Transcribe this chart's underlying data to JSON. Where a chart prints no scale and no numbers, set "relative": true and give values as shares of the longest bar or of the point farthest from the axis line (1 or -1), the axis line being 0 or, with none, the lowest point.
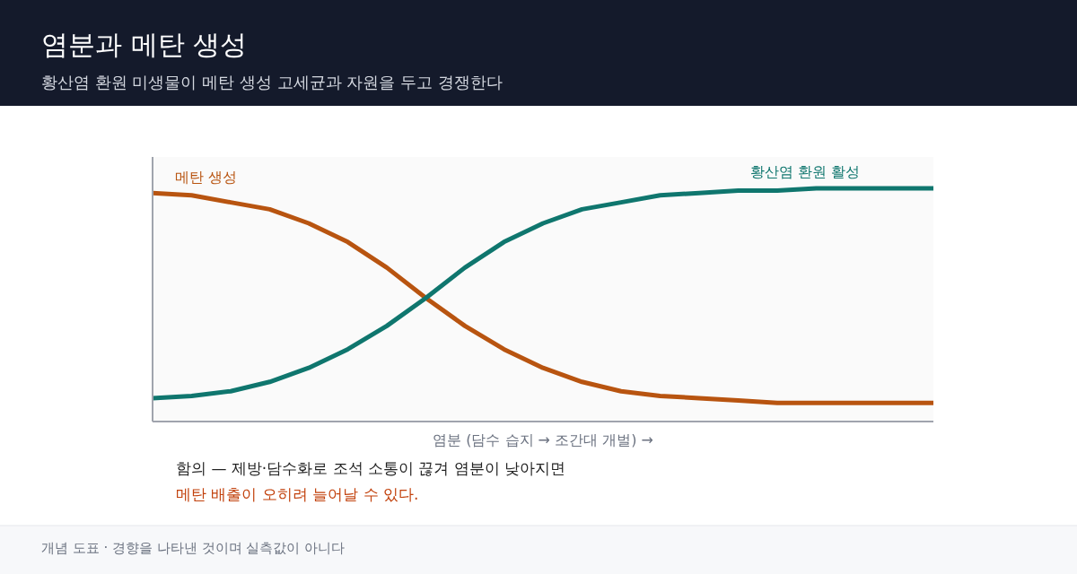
{
  "chart_data": {
    "type": "line",
    "title": "염분과 메탄 생성",
    "subtitle": "황산염 환원 미생물이 메탄 생성 고세균과 자원을 두고 경쟁한다",
    "xlabel": "염분 (담수 습지 → 조간대 개벌) →",
    "relative": true,
    "categories": [
      null,
      null,
      null,
      null,
      null,
      null,
      null,
      null,
      null,
      null,
      null,
      null,
      null,
      null,
      null,
      null,
      null,
      null,
      null,
      null,
      null
    ],
    "series": [
      {
        "name": "메탄 생성",
        "color": "#b85410",
        "values": [
          0.98,
          0.97,
          0.94,
          0.91,
          0.85,
          0.77,
          0.66,
          0.53,
          0.41,
          0.31,
          0.23,
          0.17,
          0.13,
          0.11,
          0.1,
          0.09,
          0.08,
          0.08,
          0.08,
          0.08,
          0.08
        ]
      },
      {
        "name": "황산염 환원 활성",
        "color": "#0f766e",
        "values": [
          0.1,
          0.11,
          0.13,
          0.17,
          0.23,
          0.31,
          0.41,
          0.53,
          0.66,
          0.77,
          0.85,
          0.91,
          0.94,
          0.97,
          0.98,
          0.99,
          0.99,
          1.0,
          1.0,
          1.0,
          1.0
        ]
      }
    ],
    "annotations": [
      "함의 — 제방·담수화로 조석 소통이 끊겨 염분이 낮아지면",
      "메탄 배출이 오히려 늘어날 수 있다.",
      "개념 도표 · 경향을 나타낸 것이며 실측값이 아니다"
    ]
  }
}
